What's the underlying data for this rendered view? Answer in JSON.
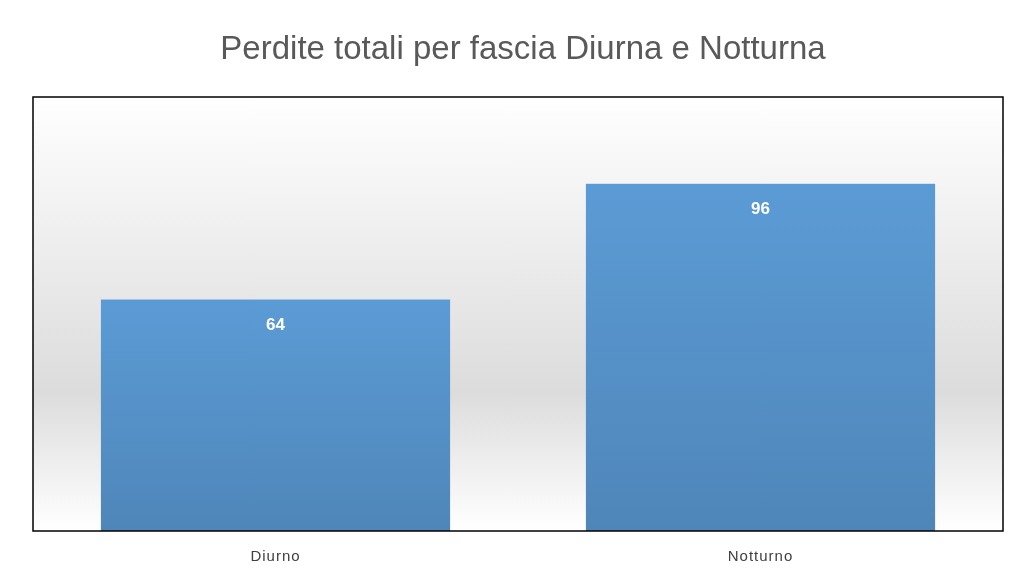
{
  "chart_data": {
    "type": "bar",
    "title": "Perdite totali per fascia Diurna e Notturna",
    "categories": [
      "Diurno",
      "Notturno"
    ],
    "values": [
      64,
      96
    ],
    "color": "#5b9bd5",
    "data_labels": true,
    "tick_labels": "x"
  }
}
